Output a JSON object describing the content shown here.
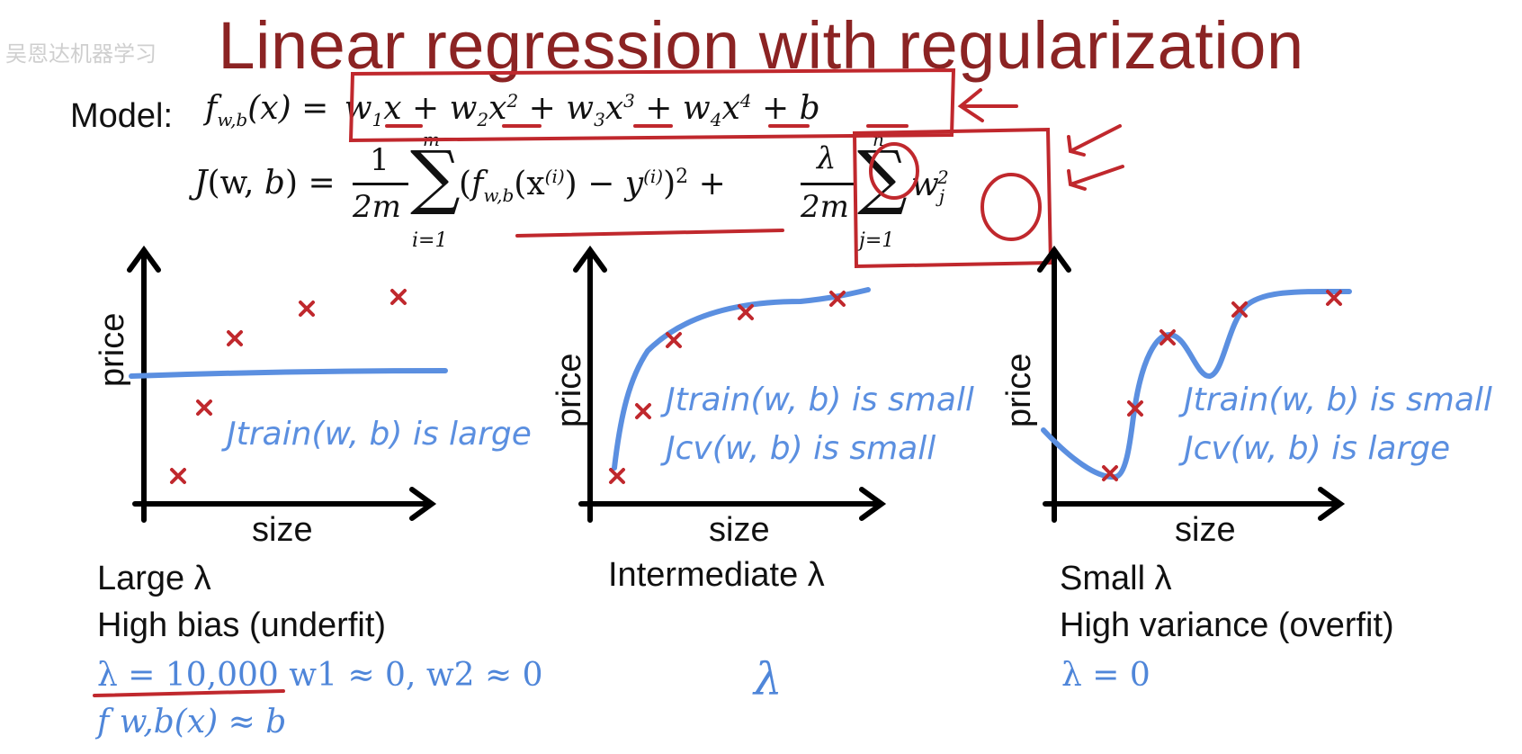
{
  "slide": {
    "title": "Linear regression with regularization",
    "watermark": "吴恩达机器学习"
  },
  "model": {
    "label": "Model:",
    "equation": "f w,b (x) = w1x + w2x² + w3x³ + w4x⁴ + b"
  },
  "cost": {
    "lhs": "J(w, b) =",
    "term1": "1/2m Σ i=1..m (f w,b(x(i)) − y(i))²",
    "term2": "λ/2m Σ j=1..n wj²"
  },
  "plots": [
    {
      "ylabel": "price",
      "xlabel": "size",
      "annotations": [
        "Jtrain(w, b) is large"
      ],
      "caption1": "Large λ",
      "caption2": "High bias (underfit)",
      "note1": "λ = 10,000   w1 ≈ 0, w2 ≈ 0",
      "note2": "f w,b(x) ≈ b"
    },
    {
      "ylabel": "price",
      "xlabel": "size",
      "annotations": [
        "Jtrain(w, b) is small",
        "Jcv(w, b) is small"
      ],
      "caption1": "Intermediate λ",
      "note1": "λ"
    },
    {
      "ylabel": "price",
      "xlabel": "size",
      "annotations": [
        "Jtrain(w, b) is small",
        "Jcv(w, b) is large"
      ],
      "caption1": "Small λ",
      "caption2": "High variance (overfit)",
      "note1": "λ = 0"
    }
  ],
  "colors": {
    "title": "#8b2323",
    "annotation_red": "#c0282d",
    "curve_blue": "#5b8fe0",
    "axis": "#000000"
  }
}
